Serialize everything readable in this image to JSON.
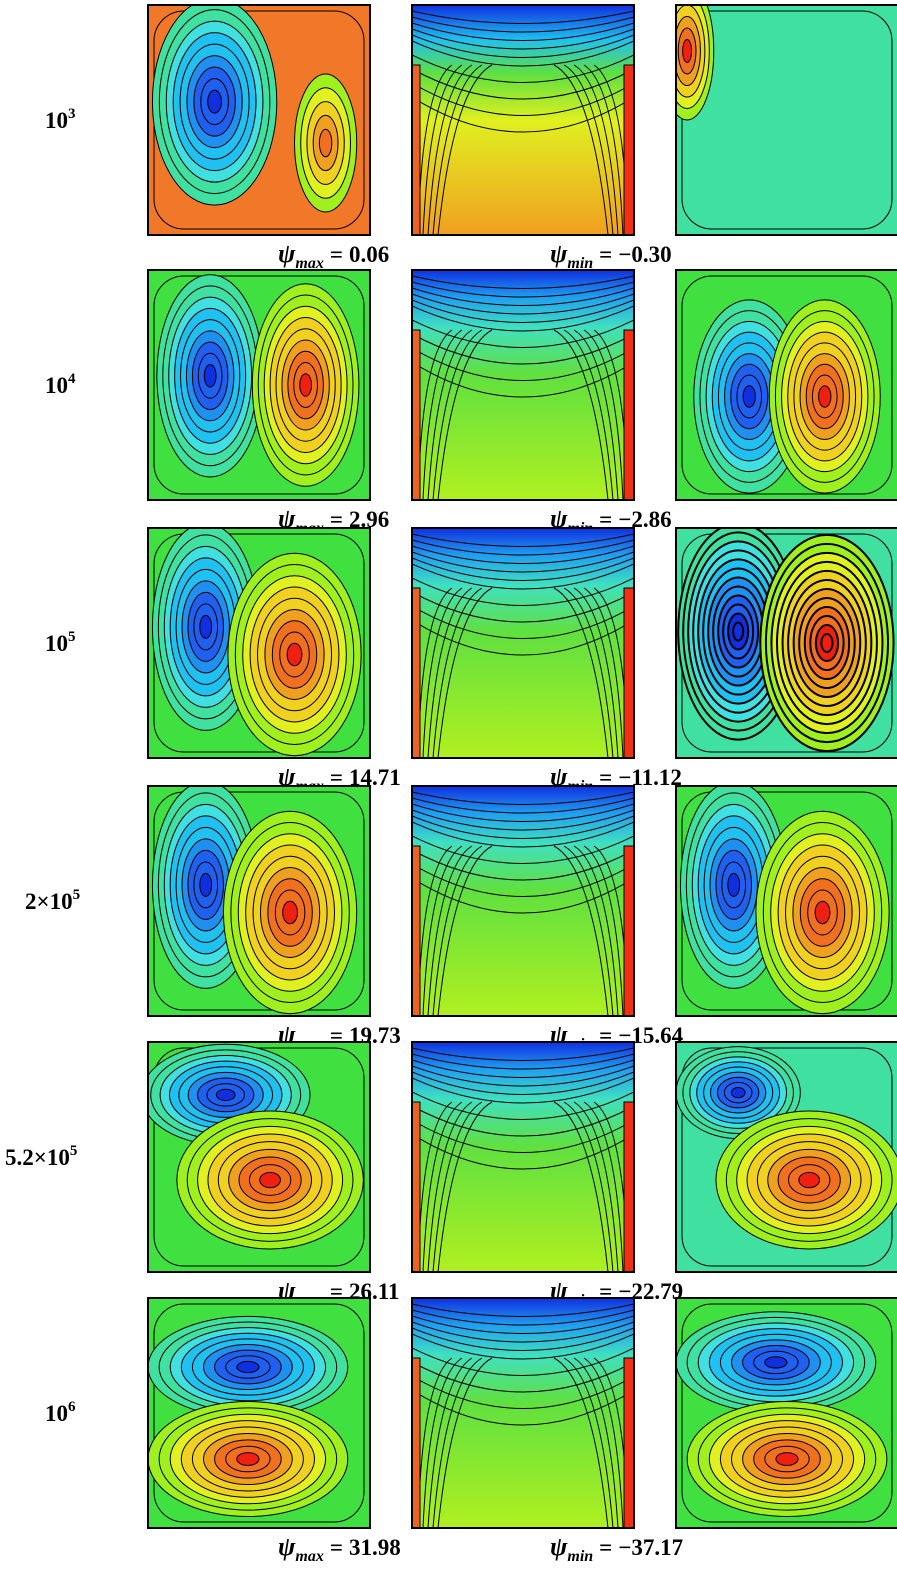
{
  "max_label": {
    "symbol": "ψ",
    "subscript": "max"
  },
  "min_label": {
    "symbol": "ψ",
    "subscript": "min"
  },
  "equals": "=",
  "rows": [
    {
      "label_base": "10",
      "label_exp": "3",
      "psi_max": "0.06",
      "psi_min": "−0.30"
    },
    {
      "label_base": "10",
      "label_exp": "4",
      "psi_max": "2.96",
      "psi_min": "−2.86"
    },
    {
      "label_base": "10",
      "label_exp": "5",
      "psi_max": "14.71",
      "psi_min": "−11.12"
    },
    {
      "label_base": "2×10",
      "label_exp": "5",
      "psi_max": "19.73",
      "psi_min": "−15.64"
    },
    {
      "label_base": "5.2×10",
      "label_exp": "5",
      "psi_max": "26.11",
      "psi_min": "−22.79"
    },
    {
      "label_base": "10",
      "label_exp": "6",
      "psi_max": "31.98",
      "psi_min": "−37.17"
    }
  ]
}
